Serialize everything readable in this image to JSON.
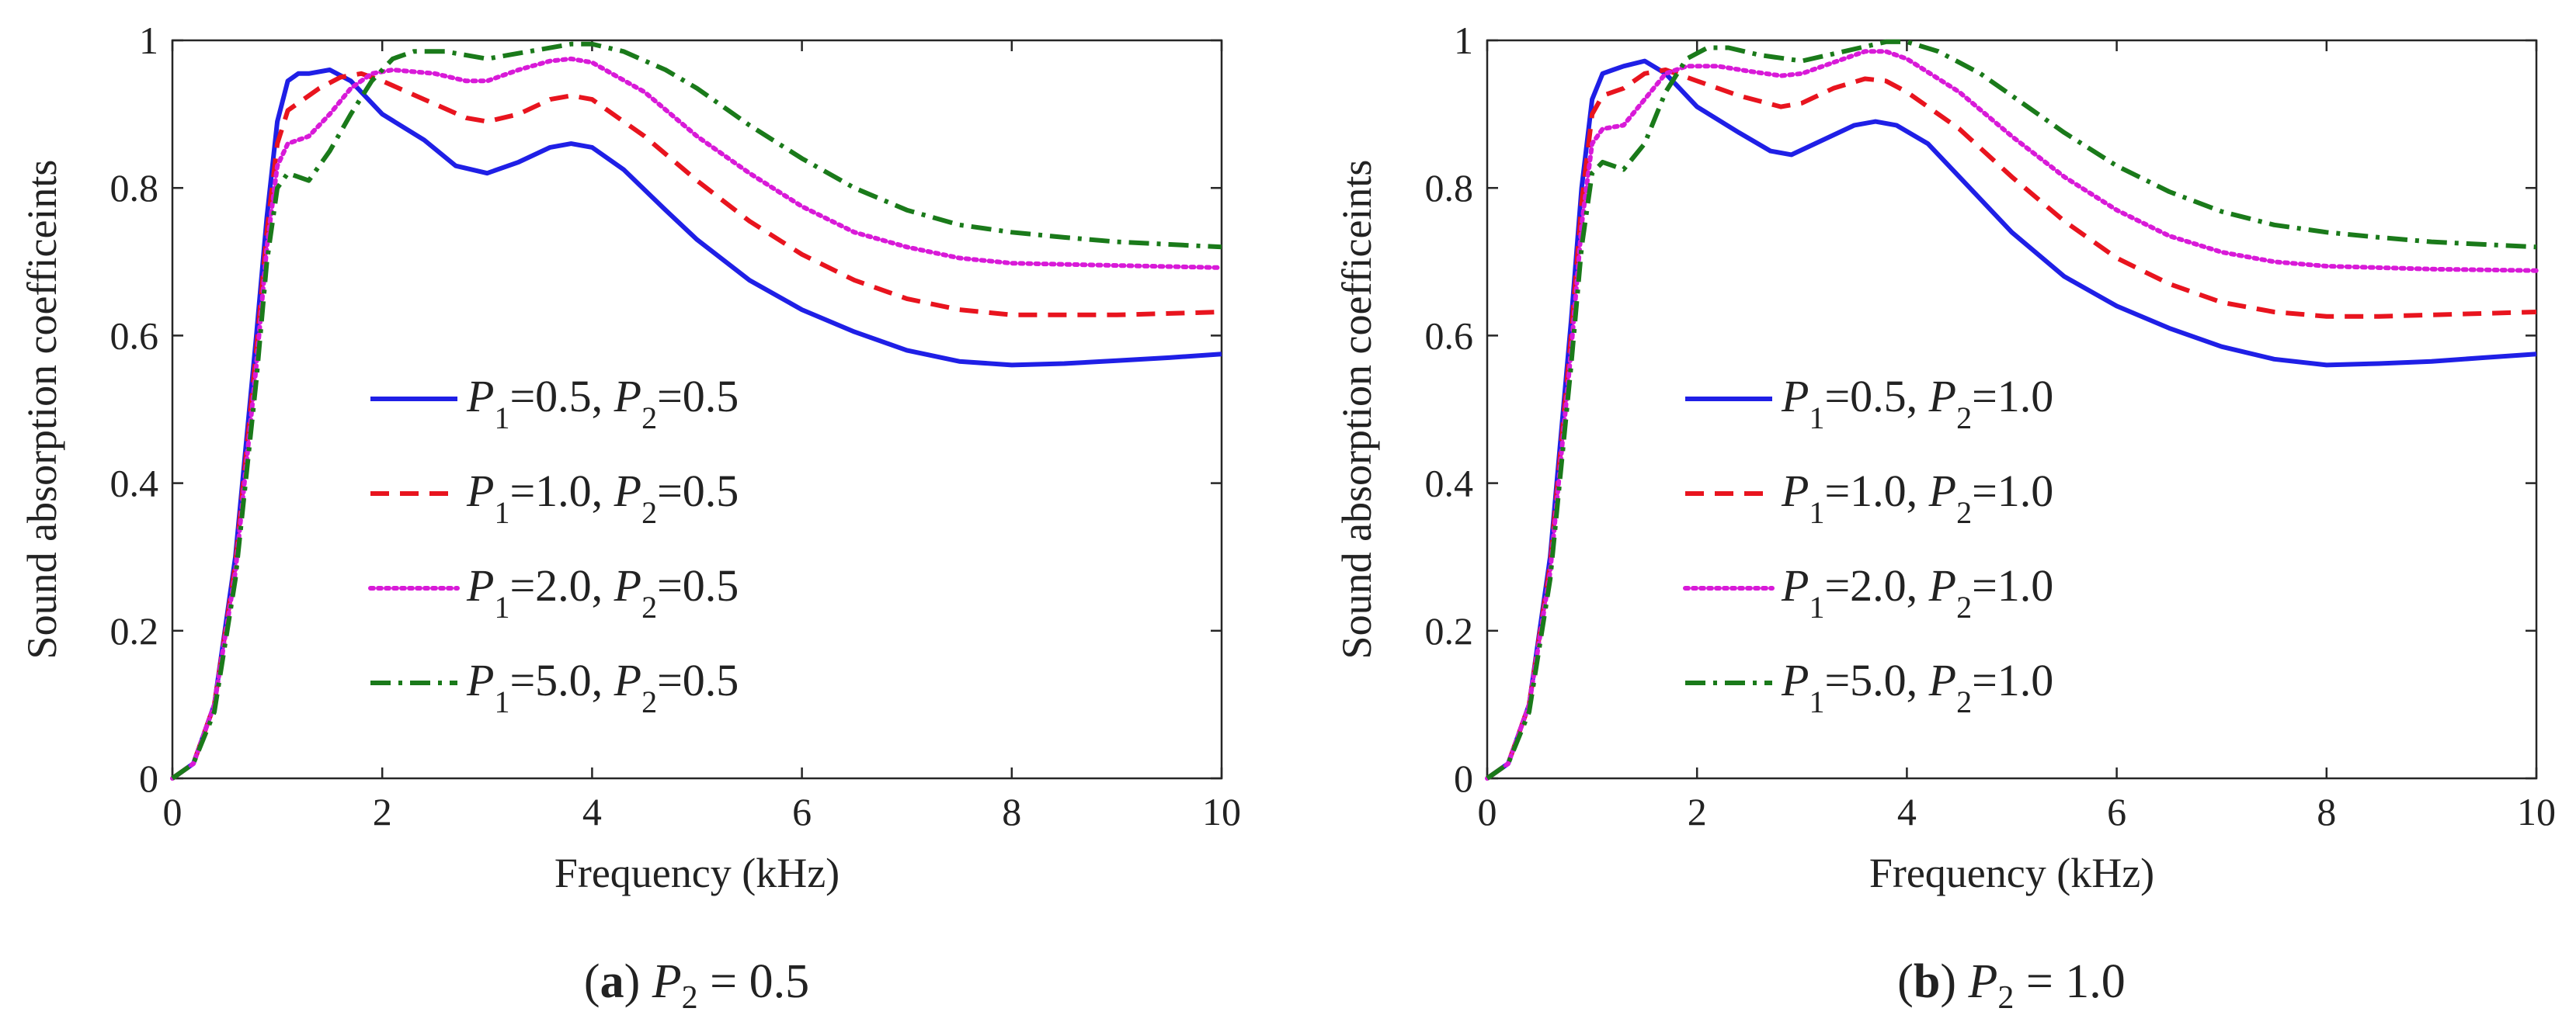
{
  "chart_data": [
    {
      "type": "line",
      "panel": "a",
      "caption_letter": "a",
      "caption_var": "P",
      "caption_sub": "2",
      "caption_rest": " = 0.5",
      "xlabel": "Frequency (kHz)",
      "ylabel": "Sound absorption coefficeints",
      "xlim": [
        0,
        10
      ],
      "ylim": [
        0,
        1
      ],
      "xticks": [
        0,
        2,
        4,
        6,
        8,
        10
      ],
      "xtick_labels": [
        "0",
        "2",
        "4",
        "6",
        "8",
        "10"
      ],
      "yticks": [
        0,
        0.2,
        0.4,
        0.6,
        0.8,
        1
      ],
      "ytick_labels": [
        "0",
        "0.2",
        "0.4",
        "0.6",
        "0.8",
        "1"
      ],
      "legend_position": "center-left",
      "series": [
        {
          "name": "P1=0.5, P2=0.5",
          "p1": "1",
          "v1": "=0.5, ",
          "p2": "2",
          "v2": "=0.5",
          "color": "#1f1fe6",
          "style": "solid",
          "x": [
            0,
            0.2,
            0.4,
            0.6,
            0.8,
            0.9,
            1.0,
            1.1,
            1.2,
            1.3,
            1.5,
            1.7,
            2.0,
            2.4,
            2.7,
            3.0,
            3.3,
            3.6,
            3.8,
            4.0,
            4.3,
            4.7,
            5.0,
            5.5,
            6.0,
            6.5,
            7.0,
            7.5,
            8.0,
            8.5,
            9.0,
            9.5,
            10.0
          ],
          "y": [
            0,
            0.02,
            0.1,
            0.3,
            0.6,
            0.76,
            0.89,
            0.945,
            0.955,
            0.955,
            0.96,
            0.945,
            0.9,
            0.865,
            0.83,
            0.82,
            0.835,
            0.855,
            0.86,
            0.855,
            0.825,
            0.77,
            0.73,
            0.675,
            0.635,
            0.605,
            0.58,
            0.565,
            0.56,
            0.562,
            0.566,
            0.57,
            0.575
          ]
        },
        {
          "name": "P1=1.0, P2=0.5",
          "p1": "1",
          "v1": "=1.0, ",
          "p2": "2",
          "v2": "=0.5",
          "color": "#e8141e",
          "style": "dashed",
          "x": [
            0,
            0.2,
            0.4,
            0.6,
            0.8,
            0.9,
            1.0,
            1.1,
            1.2,
            1.4,
            1.6,
            1.8,
            2.0,
            2.4,
            2.8,
            3.0,
            3.3,
            3.6,
            3.8,
            4.0,
            4.5,
            5.0,
            5.5,
            6.0,
            6.5,
            7.0,
            7.5,
            8.0,
            8.5,
            9.0,
            10.0
          ],
          "y": [
            0,
            0.02,
            0.1,
            0.29,
            0.58,
            0.74,
            0.86,
            0.905,
            0.915,
            0.935,
            0.95,
            0.955,
            0.945,
            0.92,
            0.895,
            0.89,
            0.9,
            0.92,
            0.925,
            0.92,
            0.87,
            0.81,
            0.755,
            0.71,
            0.675,
            0.65,
            0.635,
            0.628,
            0.628,
            0.628,
            0.632
          ]
        },
        {
          "name": "P1=2.0, P2=0.5",
          "p1": "1",
          "v1": "=2.0, ",
          "p2": "2",
          "v2": "=0.5",
          "color": "#d81ad8",
          "style": "dotted",
          "x": [
            0,
            0.2,
            0.4,
            0.6,
            0.8,
            0.9,
            1.0,
            1.1,
            1.3,
            1.5,
            1.7,
            1.9,
            2.1,
            2.5,
            2.8,
            3.0,
            3.3,
            3.6,
            3.8,
            4.0,
            4.5,
            5.0,
            5.5,
            6.0,
            6.5,
            7.0,
            7.5,
            8.0,
            9.0,
            10.0
          ],
          "y": [
            0,
            0.02,
            0.1,
            0.28,
            0.56,
            0.72,
            0.83,
            0.86,
            0.87,
            0.9,
            0.935,
            0.955,
            0.96,
            0.955,
            0.945,
            0.945,
            0.96,
            0.972,
            0.975,
            0.97,
            0.93,
            0.87,
            0.82,
            0.775,
            0.74,
            0.72,
            0.705,
            0.698,
            0.695,
            0.692
          ]
        },
        {
          "name": "P1=5.0, P2=0.5",
          "p1": "1",
          "v1": "=5.0, ",
          "p2": "2",
          "v2": "=0.5",
          "color": "#1a7a1a",
          "style": "dashdot",
          "x": [
            0,
            0.2,
            0.4,
            0.6,
            0.8,
            0.9,
            1.0,
            1.1,
            1.3,
            1.5,
            1.7,
            1.9,
            2.1,
            2.3,
            2.6,
            3.0,
            3.4,
            3.8,
            4.0,
            4.3,
            4.7,
            5.0,
            5.5,
            6.0,
            6.5,
            7.0,
            7.5,
            8.0,
            8.5,
            9.0,
            10.0
          ],
          "y": [
            0,
            0.02,
            0.09,
            0.27,
            0.54,
            0.7,
            0.8,
            0.82,
            0.81,
            0.85,
            0.9,
            0.945,
            0.975,
            0.985,
            0.985,
            0.975,
            0.985,
            0.995,
            0.995,
            0.985,
            0.96,
            0.935,
            0.885,
            0.84,
            0.8,
            0.77,
            0.75,
            0.74,
            0.733,
            0.727,
            0.72
          ]
        }
      ]
    },
    {
      "type": "line",
      "panel": "b",
      "caption_letter": "b",
      "caption_var": "P",
      "caption_sub": "2",
      "caption_rest": " = 1.0",
      "xlabel": "Frequency (kHz)",
      "ylabel": "Sound absorption coefficeints",
      "xlim": [
        0,
        10
      ],
      "ylim": [
        0,
        1
      ],
      "xticks": [
        0,
        2,
        4,
        6,
        8,
        10
      ],
      "xtick_labels": [
        "0",
        "2",
        "4",
        "6",
        "8",
        "10"
      ],
      "yticks": [
        0,
        0.2,
        0.4,
        0.6,
        0.8,
        1
      ],
      "ytick_labels": [
        "0",
        "0.2",
        "0.4",
        "0.6",
        "0.8",
        "1"
      ],
      "legend_position": "center-left",
      "series": [
        {
          "name": "P1=0.5, P2=1.0",
          "p1": "1",
          "v1": "=0.5, ",
          "p2": "2",
          "v2": "=1.0",
          "color": "#1f1fe6",
          "style": "solid",
          "x": [
            0,
            0.2,
            0.4,
            0.6,
            0.8,
            0.9,
            1.0,
            1.1,
            1.2,
            1.3,
            1.5,
            1.7,
            2.0,
            2.4,
            2.7,
            2.9,
            3.2,
            3.5,
            3.7,
            3.9,
            4.2,
            4.6,
            5.0,
            5.5,
            6.0,
            6.5,
            7.0,
            7.5,
            8.0,
            8.5,
            9.0,
            9.5,
            10.0
          ],
          "y": [
            0,
            0.02,
            0.1,
            0.3,
            0.62,
            0.8,
            0.92,
            0.955,
            0.96,
            0.965,
            0.972,
            0.955,
            0.91,
            0.875,
            0.85,
            0.845,
            0.865,
            0.885,
            0.89,
            0.885,
            0.86,
            0.8,
            0.74,
            0.68,
            0.64,
            0.61,
            0.585,
            0.568,
            0.56,
            0.562,
            0.565,
            0.57,
            0.575
          ]
        },
        {
          "name": "P1=1.0, P2=1.0",
          "p1": "1",
          "v1": "=1.0, ",
          "p2": "2",
          "v2": "=1.0",
          "color": "#e8141e",
          "style": "dashed",
          "x": [
            0,
            0.2,
            0.4,
            0.6,
            0.8,
            0.9,
            1.0,
            1.1,
            1.3,
            1.5,
            1.7,
            2.0,
            2.4,
            2.8,
            3.0,
            3.3,
            3.6,
            3.8,
            4.0,
            4.5,
            5.0,
            5.5,
            6.0,
            6.5,
            7.0,
            7.5,
            8.0,
            8.5,
            9.0,
            10.0
          ],
          "y": [
            0,
            0.02,
            0.1,
            0.29,
            0.6,
            0.78,
            0.9,
            0.925,
            0.935,
            0.955,
            0.96,
            0.945,
            0.925,
            0.91,
            0.915,
            0.935,
            0.948,
            0.945,
            0.93,
            0.88,
            0.815,
            0.755,
            0.705,
            0.67,
            0.645,
            0.632,
            0.626,
            0.626,
            0.628,
            0.632
          ]
        },
        {
          "name": "P1=2.0, P2=1.0",
          "p1": "1",
          "v1": "=2.0, ",
          "p2": "2",
          "v2": "=1.0",
          "color": "#d81ad8",
          "style": "dotted",
          "x": [
            0,
            0.2,
            0.4,
            0.6,
            0.8,
            0.9,
            1.0,
            1.1,
            1.3,
            1.5,
            1.7,
            1.9,
            2.2,
            2.5,
            2.8,
            3.0,
            3.3,
            3.6,
            3.8,
            4.0,
            4.5,
            5.0,
            5.5,
            6.0,
            6.5,
            7.0,
            7.5,
            8.0,
            9.0,
            10.0
          ],
          "y": [
            0,
            0.02,
            0.1,
            0.28,
            0.58,
            0.75,
            0.86,
            0.88,
            0.885,
            0.92,
            0.955,
            0.965,
            0.965,
            0.958,
            0.952,
            0.955,
            0.97,
            0.985,
            0.985,
            0.975,
            0.93,
            0.87,
            0.815,
            0.77,
            0.735,
            0.713,
            0.7,
            0.694,
            0.69,
            0.688
          ]
        },
        {
          "name": "P1=5.0, P2=1.0",
          "p1": "1",
          "v1": "=5.0, ",
          "p2": "2",
          "v2": "=1.0",
          "color": "#1a7a1a",
          "style": "dashdot",
          "x": [
            0,
            0.2,
            0.4,
            0.6,
            0.8,
            0.9,
            1.0,
            1.1,
            1.3,
            1.5,
            1.7,
            1.9,
            2.1,
            2.3,
            2.6,
            3.0,
            3.4,
            3.8,
            4.0,
            4.3,
            4.7,
            5.0,
            5.5,
            6.0,
            6.5,
            7.0,
            7.5,
            8.0,
            8.5,
            9.0,
            10.0
          ],
          "y": [
            0,
            0.02,
            0.09,
            0.27,
            0.56,
            0.72,
            0.82,
            0.835,
            0.825,
            0.86,
            0.93,
            0.975,
            0.99,
            0.99,
            0.98,
            0.972,
            0.985,
            0.998,
            0.998,
            0.985,
            0.955,
            0.925,
            0.875,
            0.83,
            0.795,
            0.768,
            0.75,
            0.74,
            0.733,
            0.727,
            0.72
          ]
        }
      ]
    }
  ]
}
